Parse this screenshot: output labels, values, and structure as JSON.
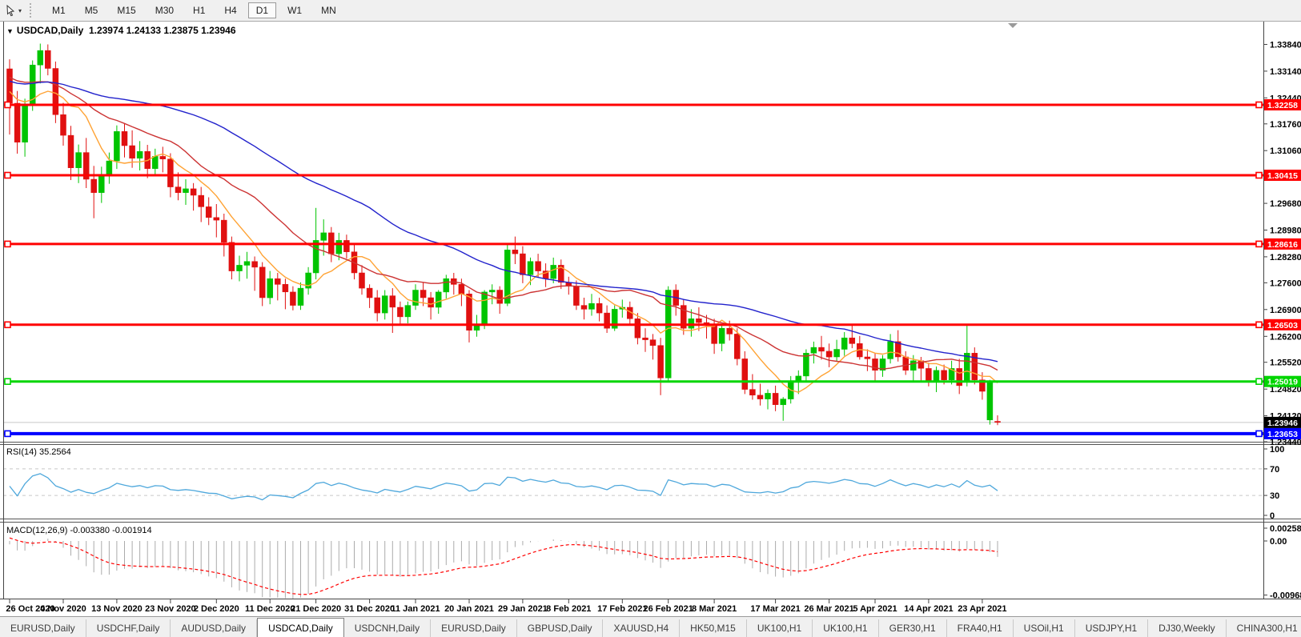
{
  "toolbar": {
    "cursor_tool_icon": "crosshair-cursor-icon",
    "dropdown_caret": "▾",
    "timeframes": [
      "M1",
      "M5",
      "M15",
      "M30",
      "H1",
      "H4",
      "D1",
      "W1",
      "MN"
    ],
    "active_timeframe": "D1"
  },
  "chart": {
    "title": {
      "dropdown_glyph": "▼",
      "symbol_period": "USDCAD,Daily",
      "open": "1.23974",
      "high": "1.24133",
      "low": "1.23875",
      "close": "1.23946"
    },
    "price_axis_ticks": [
      "1.33840",
      "1.33140",
      "1.32440",
      "1.31760",
      "1.31060",
      "1.29680",
      "1.28980",
      "1.28280",
      "1.27600",
      "1.26900",
      "1.26200",
      "1.25520",
      "1.24820",
      "1.24120",
      "1.23440"
    ],
    "current_price": {
      "value": 1.23946,
      "label": "1.23946"
    }
  },
  "rsi": {
    "name": "RSI(14)",
    "value": "35.2564",
    "levels": [
      70,
      30
    ],
    "axis_labels": [
      "100",
      "70",
      "30",
      "0"
    ],
    "axis_values": [
      100,
      70,
      30,
      0
    ]
  },
  "macd": {
    "name": "MACD(12,26,9)",
    "main_value": "-0.003380",
    "signal_value": "-0.001914",
    "axis": [
      {
        "value": 0.00258,
        "label": "0.00258"
      },
      {
        "value": 0,
        "label": "0.00"
      },
      {
        "value": -0.009687,
        "label": "-0.009687"
      }
    ]
  },
  "tabs": {
    "items": [
      "EURUSD,Daily",
      "USDCHF,Daily",
      "AUDUSD,Daily",
      "USDCAD,Daily",
      "USDCNH,Daily",
      "EURUSD,Daily",
      "GBPUSD,Daily",
      "XAUUSD,H4",
      "HK50,M15",
      "UK100,H1",
      "UK100,H1",
      "GER30,H1",
      "FRA40,H1",
      "USOil,H1",
      "USDJPY,H1",
      "DJ30,Weekly",
      "CHINA300,H1",
      "U"
    ],
    "active_index": 3,
    "scroll_left": "◄",
    "scroll_right": "►"
  },
  "colors": {
    "candle_up": "#00C400",
    "candle_down": "#E01010",
    "ma_fast": "#FFA335",
    "ma_mid": "#CC3333",
    "ma_slow": "#2222CC",
    "rsi_line": "#4FA8DC",
    "level_dash": "#C6C6C6",
    "macd_hist": "#ABABAB",
    "macd_signal": "#FF0000",
    "hline_red": "#FF0000",
    "hline_green": "#00D500",
    "hline_blue": "#0000FF",
    "current_line": "#C6C6C6",
    "label_red_bg": "#FF0000",
    "label_green_bg": "#00CC00",
    "label_blue_bg": "#0000FF",
    "label_black_bg": "#000000"
  },
  "chart_data": {
    "type": "candlestick",
    "symbol": "USDCAD",
    "timeframe": "Daily",
    "horizontal_lines": [
      {
        "price": 1.32258,
        "label": "1.32258",
        "color": "#FF0000",
        "width": 3
      },
      {
        "price": 1.30415,
        "label": "1.30415",
        "color": "#FF0000",
        "width": 3
      },
      {
        "price": 1.28616,
        "label": "1.28616",
        "color": "#FF0000",
        "width": 3
      },
      {
        "price": 1.26503,
        "label": "1.26503",
        "color": "#FF0000",
        "width": 3
      },
      {
        "price": 1.25019,
        "label": "1.25019",
        "color": "#00D500",
        "width": 3
      },
      {
        "price": 1.23653,
        "label": "1.23653",
        "color": "#0000FF",
        "width": 4
      }
    ],
    "moving_averages": [
      {
        "period": 8,
        "color": "#FFA335"
      },
      {
        "period": 20,
        "color": "#CC3333"
      },
      {
        "period": 45,
        "color": "#2222CC"
      }
    ],
    "indicator_seed_closes": [
      1.3225,
      1.3246,
      1.3238,
      1.3262,
      1.328,
      1.3271,
      1.3296,
      1.331,
      1.3302,
      1.3325,
      1.334,
      1.3332,
      1.335,
      1.3342,
      1.3322,
      1.3331,
      1.3308,
      1.3316,
      1.329,
      1.3298,
      1.3272,
      1.328,
      1.3255,
      1.3262,
      1.324,
      1.3248
    ],
    "ohlc": [
      [
        1.332,
        1.3345,
        1.3148,
        1.323
      ],
      [
        1.323,
        1.3262,
        1.3098,
        1.3128
      ],
      [
        1.3128,
        1.3242,
        1.309,
        1.3226
      ],
      [
        1.3226,
        1.3342,
        1.321,
        1.333
      ],
      [
        1.333,
        1.3386,
        1.3282,
        1.3368
      ],
      [
        1.3368,
        1.3384,
        1.3303,
        1.3321
      ],
      [
        1.3321,
        1.3339,
        1.3178,
        1.32
      ],
      [
        1.32,
        1.3231,
        1.3119,
        1.3146
      ],
      [
        1.3146,
        1.3171,
        1.3029,
        1.3061
      ],
      [
        1.3061,
        1.3122,
        1.3021,
        1.3101
      ],
      [
        1.3101,
        1.3139,
        1.3008,
        1.3031
      ],
      [
        1.3031,
        1.3066,
        1.2929,
        1.2996
      ],
      [
        1.2996,
        1.3064,
        1.2969,
        1.3041
      ],
      [
        1.3041,
        1.3101,
        1.3019,
        1.3079
      ],
      [
        1.3079,
        1.3172,
        1.3058,
        1.3156
      ],
      [
        1.3156,
        1.3176,
        1.3088,
        1.3119
      ],
      [
        1.3119,
        1.3159,
        1.3061,
        1.3086
      ],
      [
        1.3086,
        1.3131,
        1.3054,
        1.3104
      ],
      [
        1.3104,
        1.3121,
        1.3034,
        1.3059
      ],
      [
        1.3059,
        1.3111,
        1.3041,
        1.3091
      ],
      [
        1.3091,
        1.3116,
        1.3049,
        1.3084
      ],
      [
        1.3084,
        1.3099,
        1.2984,
        1.3011
      ],
      [
        1.3011,
        1.3049,
        1.2976,
        1.2996
      ],
      [
        1.2996,
        1.3031,
        1.2964,
        1.3006
      ],
      [
        1.3006,
        1.3021,
        1.2949,
        1.2989
      ],
      [
        1.2989,
        1.3011,
        1.2919,
        1.2959
      ],
      [
        1.2959,
        1.2984,
        1.2911,
        1.2931
      ],
      [
        1.2931,
        1.2966,
        1.2879,
        1.2924
      ],
      [
        1.2924,
        1.2941,
        1.2829,
        1.2866
      ],
      [
        1.2866,
        1.2881,
        1.2769,
        1.2791
      ],
      [
        1.2791,
        1.2831,
        1.2764,
        1.2806
      ],
      [
        1.2806,
        1.2841,
        1.2771,
        1.2816
      ],
      [
        1.2816,
        1.2829,
        1.2739,
        1.2801
      ],
      [
        1.2801,
        1.2814,
        1.2699,
        1.2721
      ],
      [
        1.2721,
        1.2791,
        1.2704,
        1.2771
      ],
      [
        1.2771,
        1.2786,
        1.2714,
        1.2756
      ],
      [
        1.2756,
        1.2771,
        1.2691,
        1.2736
      ],
      [
        1.2736,
        1.2751,
        1.2688,
        1.2701
      ],
      [
        1.2701,
        1.2761,
        1.2689,
        1.2746
      ],
      [
        1.2746,
        1.2801,
        1.2729,
        1.2786
      ],
      [
        1.2786,
        1.2956,
        1.2769,
        1.2871
      ],
      [
        1.2871,
        1.2926,
        1.2831,
        1.2891
      ],
      [
        1.2891,
        1.2906,
        1.2814,
        1.2836
      ],
      [
        1.2836,
        1.2891,
        1.2819,
        1.2871
      ],
      [
        1.2871,
        1.2886,
        1.2824,
        1.2841
      ],
      [
        1.2841,
        1.2861,
        1.2769,
        1.2786
      ],
      [
        1.2786,
        1.2806,
        1.2729,
        1.2746
      ],
      [
        1.2746,
        1.2756,
        1.2694,
        1.2721
      ],
      [
        1.2721,
        1.2741,
        1.2659,
        1.2681
      ],
      [
        1.2681,
        1.2741,
        1.2664,
        1.2726
      ],
      [
        1.2726,
        1.2746,
        1.2629,
        1.2696
      ],
      [
        1.2696,
        1.2711,
        1.2649,
        1.2671
      ],
      [
        1.2671,
        1.2711,
        1.2654,
        1.2701
      ],
      [
        1.2701,
        1.2756,
        1.2689,
        1.2741
      ],
      [
        1.2741,
        1.2761,
        1.2699,
        1.2721
      ],
      [
        1.2721,
        1.2736,
        1.2664,
        1.2696
      ],
      [
        1.2696,
        1.2741,
        1.2679,
        1.2736
      ],
      [
        1.2736,
        1.2781,
        1.2719,
        1.2771
      ],
      [
        1.2771,
        1.2786,
        1.2729,
        1.2756
      ],
      [
        1.2756,
        1.2771,
        1.2699,
        1.2731
      ],
      [
        1.2731,
        1.2741,
        1.2604,
        1.2636
      ],
      [
        1.2636,
        1.2676,
        1.2619,
        1.2651
      ],
      [
        1.2651,
        1.2741,
        1.2639,
        1.2736
      ],
      [
        1.2736,
        1.2756,
        1.2704,
        1.2741
      ],
      [
        1.2741,
        1.2751,
        1.2679,
        1.2706
      ],
      [
        1.2706,
        1.2861,
        1.2699,
        1.2846
      ],
      [
        1.2846,
        1.2881,
        1.2809,
        1.2836
      ],
      [
        1.2836,
        1.2856,
        1.2759,
        1.2781
      ],
      [
        1.2781,
        1.2826,
        1.2754,
        1.2816
      ],
      [
        1.2816,
        1.2836,
        1.2774,
        1.2791
      ],
      [
        1.2791,
        1.2811,
        1.2749,
        1.2771
      ],
      [
        1.2771,
        1.2826,
        1.2759,
        1.2806
      ],
      [
        1.2806,
        1.2821,
        1.2744,
        1.2761
      ],
      [
        1.2761,
        1.2776,
        1.2729,
        1.2751
      ],
      [
        1.2751,
        1.2766,
        1.2689,
        1.2701
      ],
      [
        1.2701,
        1.2721,
        1.2664,
        1.2691
      ],
      [
        1.2691,
        1.2731,
        1.2674,
        1.2706
      ],
      [
        1.2706,
        1.2721,
        1.2659,
        1.2681
      ],
      [
        1.2681,
        1.2701,
        1.2629,
        1.2641
      ],
      [
        1.2641,
        1.2701,
        1.2634,
        1.2691
      ],
      [
        1.2691,
        1.2716,
        1.2669,
        1.2696
      ],
      [
        1.2696,
        1.2711,
        1.2649,
        1.2666
      ],
      [
        1.2666,
        1.2681,
        1.2599,
        1.2616
      ],
      [
        1.2616,
        1.2641,
        1.2579,
        1.2611
      ],
      [
        1.2611,
        1.2626,
        1.2559,
        1.2596
      ],
      [
        1.2596,
        1.2616,
        1.2466,
        1.2511
      ],
      [
        1.2511,
        1.2751,
        1.2501,
        1.2741
      ],
      [
        1.2741,
        1.2756,
        1.2674,
        1.2701
      ],
      [
        1.2701,
        1.2716,
        1.2624,
        1.2641
      ],
      [
        1.2641,
        1.2691,
        1.2619,
        1.2666
      ],
      [
        1.2666,
        1.2696,
        1.2634,
        1.2656
      ],
      [
        1.2656,
        1.2676,
        1.2614,
        1.2651
      ],
      [
        1.2651,
        1.2666,
        1.2574,
        1.2601
      ],
      [
        1.2601,
        1.2651,
        1.2581,
        1.2641
      ],
      [
        1.2641,
        1.2661,
        1.2609,
        1.2626
      ],
      [
        1.2626,
        1.2641,
        1.2544,
        1.2561
      ],
      [
        1.2561,
        1.2581,
        1.2469,
        1.2481
      ],
      [
        1.2481,
        1.2521,
        1.2454,
        1.2466
      ],
      [
        1.2466,
        1.2496,
        1.2439,
        1.2456
      ],
      [
        1.2456,
        1.2481,
        1.2429,
        1.2471
      ],
      [
        1.2471,
        1.2491,
        1.2424,
        1.2441
      ],
      [
        1.2441,
        1.2461,
        1.2399,
        1.2456
      ],
      [
        1.2456,
        1.2516,
        1.2444,
        1.2501
      ],
      [
        1.2501,
        1.2531,
        1.2469,
        1.2516
      ],
      [
        1.2516,
        1.2586,
        1.2504,
        1.2576
      ],
      [
        1.2576,
        1.2606,
        1.2549,
        1.2591
      ],
      [
        1.2591,
        1.2621,
        1.2559,
        1.2581
      ],
      [
        1.2581,
        1.2601,
        1.2539,
        1.2566
      ],
      [
        1.2566,
        1.2611,
        1.2554,
        1.2586
      ],
      [
        1.2586,
        1.2631,
        1.2569,
        1.2616
      ],
      [
        1.2616,
        1.2651,
        1.2589,
        1.2601
      ],
      [
        1.2601,
        1.2621,
        1.2559,
        1.2566
      ],
      [
        1.2566,
        1.2586,
        1.2529,
        1.2561
      ],
      [
        1.2561,
        1.2576,
        1.2499,
        1.2531
      ],
      [
        1.2531,
        1.2571,
        1.2514,
        1.2561
      ],
      [
        1.2561,
        1.2626,
        1.2549,
        1.2606
      ],
      [
        1.2606,
        1.2636,
        1.2554,
        1.2566
      ],
      [
        1.2566,
        1.2581,
        1.2519,
        1.2531
      ],
      [
        1.2531,
        1.2571,
        1.2499,
        1.2556
      ],
      [
        1.2556,
        1.2566,
        1.2499,
        1.2536
      ],
      [
        1.2536,
        1.2551,
        1.2489,
        1.2501
      ],
      [
        1.2501,
        1.2541,
        1.2474,
        1.2531
      ],
      [
        1.2531,
        1.2546,
        1.2494,
        1.2506
      ],
      [
        1.2506,
        1.2556,
        1.2494,
        1.2536
      ],
      [
        1.2536,
        1.2561,
        1.2469,
        1.2491
      ],
      [
        1.2501,
        1.2652,
        1.2489,
        1.2576
      ],
      [
        1.2576,
        1.2591,
        1.2494,
        1.2506
      ],
      [
        1.2506,
        1.2526,
        1.2454,
        1.2476
      ],
      [
        1.2401,
        1.2506,
        1.2389,
        1.2499
      ],
      [
        1.23974,
        1.24133,
        1.23875,
        1.23946
      ]
    ],
    "date_labels": [
      {
        "i": 0,
        "label": "26 Oct 2020"
      },
      {
        "i": 7,
        "label": "4 Nov 2020"
      },
      {
        "i": 14,
        "label": "13 Nov 2020"
      },
      {
        "i": 21,
        "label": "23 Nov 2020"
      },
      {
        "i": 27,
        "label": "2 Dec 2020"
      },
      {
        "i": 34,
        "label": "11 Dec 2020"
      },
      {
        "i": 40,
        "label": "21 Dec 2020"
      },
      {
        "i": 47,
        "label": "31 Dec 2020"
      },
      {
        "i": 53,
        "label": "11 Jan 2021"
      },
      {
        "i": 60,
        "label": "20 Jan 2021"
      },
      {
        "i": 67,
        "label": "29 Jan 2021"
      },
      {
        "i": 73,
        "label": "8 Feb 2021"
      },
      {
        "i": 80,
        "label": "17 Feb 2021"
      },
      {
        "i": 86,
        "label": "26 Feb 2021"
      },
      {
        "i": 92,
        "label": "8 Mar 2021"
      },
      {
        "i": 100,
        "label": "17 Mar 2021"
      },
      {
        "i": 107,
        "label": "26 Mar 2021"
      },
      {
        "i": 113,
        "label": "5 Apr 2021"
      },
      {
        "i": 120,
        "label": "14 Apr 2021"
      },
      {
        "i": 127,
        "label": "23 Apr 2021"
      }
    ]
  }
}
